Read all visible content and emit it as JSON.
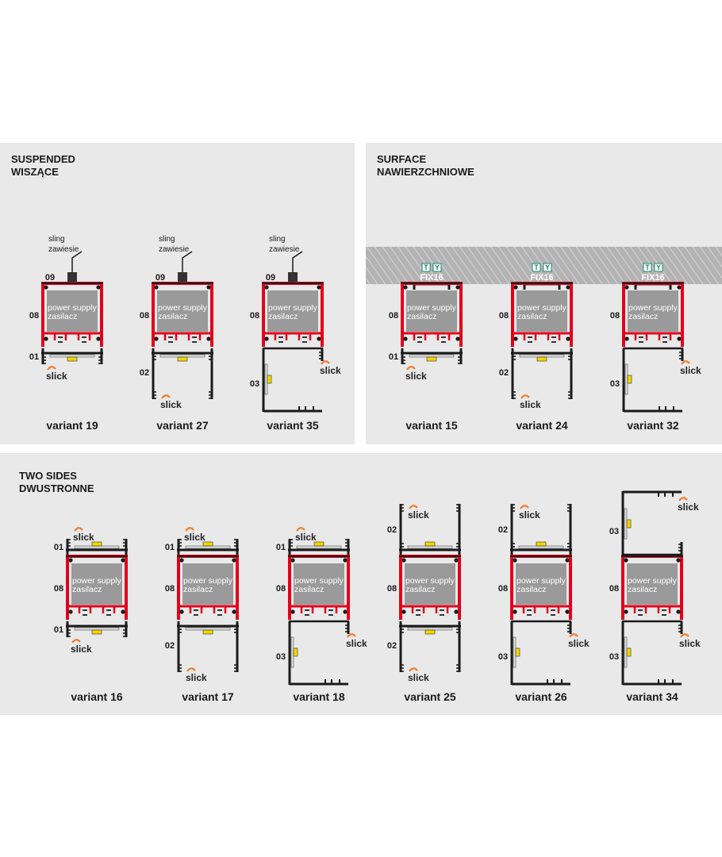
{
  "colors": {
    "panel": "#e9e9e9",
    "profile_red": "#e3001b",
    "power_supply": "#9a9a9a",
    "led": "#f2d400",
    "slick_orange": "#f07d2c",
    "ceiling": "#b8b8b8"
  },
  "common": {
    "power_supply": "power supply",
    "zasilacz": "zasilacz",
    "slick": "slick",
    "sling": "sling",
    "zawiesie": "zawiesie",
    "fix": "FIX16",
    "t": "T",
    "y": "Y"
  },
  "sections": {
    "suspended": {
      "title_en": "SUSPENDED",
      "title_pl": "WISZĄCE"
    },
    "surface": {
      "title_en": "SURFACE",
      "title_pl": "NAWIERZCHNIOWE"
    },
    "two_sides": {
      "title_en": "TWO SIDES",
      "title_pl": "DWUSTRONNE"
    }
  },
  "variants": [
    {
      "label": "variant 19",
      "section": "suspended",
      "mount": "sling",
      "mount_label": "09",
      "top": null,
      "middle": "08",
      "bottom": "01"
    },
    {
      "label": "variant 27",
      "section": "suspended",
      "mount": "sling",
      "mount_label": "09",
      "top": null,
      "middle": "08",
      "bottom": "02"
    },
    {
      "label": "variant 35",
      "section": "suspended",
      "mount": "sling",
      "mount_label": "09",
      "top": null,
      "middle": "08",
      "bottom": "03"
    },
    {
      "label": "variant 15",
      "section": "surface",
      "mount": "fix16",
      "top": null,
      "middle": "08",
      "bottom": "01"
    },
    {
      "label": "variant 24",
      "section": "surface",
      "mount": "fix16",
      "top": null,
      "middle": "08",
      "bottom": "02"
    },
    {
      "label": "variant 32",
      "section": "surface",
      "mount": "fix16",
      "top": null,
      "middle": "08",
      "bottom": "03"
    },
    {
      "label": "variant 16",
      "section": "two_sides",
      "top": "01",
      "middle": "08",
      "bottom": "01"
    },
    {
      "label": "variant 17",
      "section": "two_sides",
      "top": "01",
      "middle": "08",
      "bottom": "02"
    },
    {
      "label": "variant 18",
      "section": "two_sides",
      "top": "01",
      "middle": "08",
      "bottom": "03"
    },
    {
      "label": "variant 25",
      "section": "two_sides",
      "top": "02",
      "middle": "08",
      "bottom": "02"
    },
    {
      "label": "variant 26",
      "section": "two_sides",
      "top": "02",
      "middle": "08",
      "bottom": "03"
    },
    {
      "label": "variant 34",
      "section": "two_sides",
      "top": "03",
      "middle": "08",
      "bottom": "03"
    }
  ]
}
